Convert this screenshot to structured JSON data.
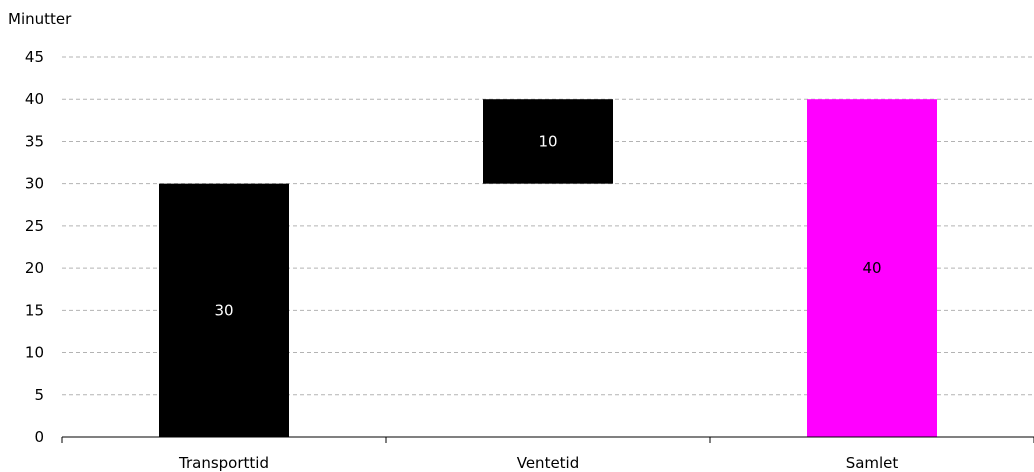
{
  "chart_data": {
    "type": "bar",
    "subtype": "waterfall",
    "ylabel": "Minutter",
    "ylim": [
      0,
      45
    ],
    "yticks": [
      0,
      5,
      10,
      15,
      20,
      25,
      30,
      35,
      40,
      45
    ],
    "grid": true,
    "categories": [
      "Transporttid",
      "Ventetid",
      "Samlet"
    ],
    "bars": [
      {
        "category": "Transporttid",
        "base": 0,
        "value": 30,
        "label": "30",
        "color": "#000000",
        "label_color": "#ffffff"
      },
      {
        "category": "Ventetid",
        "base": 30,
        "value": 10,
        "label": "10",
        "color": "#000000",
        "label_color": "#ffffff"
      },
      {
        "category": "Samlet",
        "base": 0,
        "value": 40,
        "label": "40",
        "color": "#ff00ff",
        "label_color": "#000000"
      }
    ]
  }
}
